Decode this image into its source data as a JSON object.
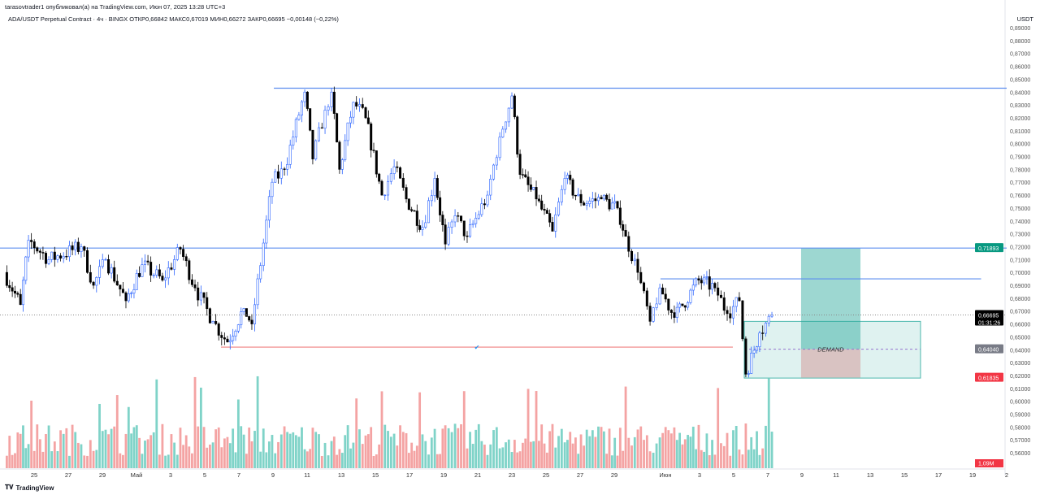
{
  "header": {
    "publisher_line": "tarasovtrader1 опубликовал(а) на TradingView.com, Июн 07, 2025 13:28 UTC+3",
    "symbol_line": "ADA/USDT Perpetual Contract · 4ч · BINGX  ОТКР0,66842  МАКС0,67019  МИН0,66272  ЗАКР0,66695  −0,00148 (−0,22%)",
    "currency": "USDT"
  },
  "footer": {
    "logo_text": "TradingView"
  },
  "colors": {
    "up": "#2962ff",
    "down": "#000000",
    "vol_up": "#7fd3c8",
    "vol_down": "#f4a3a3",
    "line": "#5b8def",
    "support": "#f08080",
    "profit": "#26a69a",
    "stop": "#d6a3a3"
  },
  "chart_data": {
    "type": "candlestick",
    "title": "ADA/USDT Perpetual Contract · 4ч · BINGX",
    "ylim": [
      0.555,
      0.895
    ],
    "y_ticks": [
      "0,89000",
      "0,88000",
      "0,87000",
      "0,86000",
      "0,85000",
      "0,84000",
      "0,83000",
      "0,82000",
      "0,81000",
      "0,80000",
      "0,79000",
      "0,78000",
      "0,77000",
      "0,76000",
      "0,75000",
      "0,74000",
      "0,73000",
      "0,72000",
      "0,71000",
      "0,70000",
      "0,69000",
      "0,68000",
      "0,67000",
      "0,66000",
      "0,65000",
      "0,64000",
      "0,63000",
      "0,62000",
      "0,61000",
      "0,60000",
      "0,59000",
      "0,58000",
      "0,57000",
      "0,56000"
    ],
    "x_ticks": [
      {
        "label": "25",
        "day": 0
      },
      {
        "label": "27",
        "day": 2
      },
      {
        "label": "29",
        "day": 4
      },
      {
        "label": "Май",
        "day": 6
      },
      {
        "label": "3",
        "day": 8
      },
      {
        "label": "5",
        "day": 10
      },
      {
        "label": "7",
        "day": 12
      },
      {
        "label": "9",
        "day": 14
      },
      {
        "label": "11",
        "day": 16
      },
      {
        "label": "13",
        "day": 18
      },
      {
        "label": "15",
        "day": 20
      },
      {
        "label": "17",
        "day": 22
      },
      {
        "label": "19",
        "day": 24
      },
      {
        "label": "21",
        "day": 26
      },
      {
        "label": "23",
        "day": 28
      },
      {
        "label": "25",
        "day": 30
      },
      {
        "label": "27",
        "day": 32
      },
      {
        "label": "29",
        "day": 34
      },
      {
        "label": "Июн",
        "day": 37
      },
      {
        "label": "3",
        "day": 39
      },
      {
        "label": "5",
        "day": 41
      },
      {
        "label": "7",
        "day": 43
      },
      {
        "label": "9",
        "day": 45
      },
      {
        "label": "11",
        "day": 47
      },
      {
        "label": "13",
        "day": 49
      },
      {
        "label": "15",
        "day": 51
      },
      {
        "label": "17",
        "day": 53
      },
      {
        "label": "19",
        "day": 55
      },
      {
        "label": "2",
        "day": 57
      }
    ],
    "close_path_days_from_apr25": [
      [
        -1.76,
        0.7
      ],
      [
        -0.8,
        0.675
      ],
      [
        -0.33,
        0.725
      ],
      [
        0.86,
        0.71
      ],
      [
        2.76,
        0.72
      ],
      [
        3.48,
        0.69
      ],
      [
        4.19,
        0.71
      ],
      [
        5.38,
        0.678
      ],
      [
        6.33,
        0.706
      ],
      [
        7.52,
        0.694
      ],
      [
        8.57,
        0.718
      ],
      [
        9.43,
        0.688
      ],
      [
        10.48,
        0.662
      ],
      [
        11.33,
        0.646
      ],
      [
        12.29,
        0.672
      ],
      [
        12.76,
        0.66
      ],
      [
        13.95,
        0.77
      ],
      [
        14.67,
        0.78
      ],
      [
        15.86,
        0.84
      ],
      [
        16.33,
        0.788
      ],
      [
        17.05,
        0.826
      ],
      [
        17.43,
        0.84
      ],
      [
        17.9,
        0.78
      ],
      [
        18.71,
        0.832
      ],
      [
        19.43,
        0.82
      ],
      [
        20.38,
        0.76
      ],
      [
        21.1,
        0.782
      ],
      [
        21.81,
        0.757
      ],
      [
        22.76,
        0.735
      ],
      [
        23.48,
        0.773
      ],
      [
        24.1,
        0.722
      ],
      [
        24.67,
        0.744
      ],
      [
        25.38,
        0.728
      ],
      [
        26.57,
        0.76
      ],
      [
        27.29,
        0.805
      ],
      [
        28.0,
        0.837
      ],
      [
        28.48,
        0.776
      ],
      [
        29.43,
        0.757
      ],
      [
        30.38,
        0.732
      ],
      [
        31.1,
        0.773
      ],
      [
        32.05,
        0.754
      ],
      [
        33.24,
        0.757
      ],
      [
        34.19,
        0.75
      ],
      [
        34.67,
        0.728
      ],
      [
        35.38,
        0.7
      ],
      [
        36.1,
        0.662
      ],
      [
        36.67,
        0.688
      ],
      [
        37.52,
        0.665
      ],
      [
        38.95,
        0.694
      ],
      [
        39.9,
        0.688
      ],
      [
        40.62,
        0.668
      ],
      [
        41.33,
        0.678
      ],
      [
        41.71,
        0.621
      ],
      [
        42.52,
        0.653
      ],
      [
        43.24,
        0.667
      ]
    ],
    "volume_last": "1,09M",
    "current_price": {
      "value": 0.66695,
      "label": "0,66695",
      "countdown": "01:31:26"
    },
    "levels": [
      {
        "name": "resistance-high",
        "price": 0.843,
        "from_day": 14.05,
        "to_day": 57
      },
      {
        "name": "resistance-mid",
        "price": 0.7189,
        "from_day": -2,
        "to_day": 57
      },
      {
        "name": "range-top",
        "price": 0.695,
        "from_day": 36.71,
        "to_day": 55.5
      },
      {
        "name": "support",
        "price": 0.642,
        "from_day": 10.95,
        "to_day": 40.95
      }
    ],
    "position": {
      "target": 0.71893,
      "target_label": "0,71893",
      "entry": 0.6404,
      "entry_label": "0,64040",
      "stop": 0.61835,
      "stop_label": "0,61835",
      "from_day": 44.95,
      "to_day": 48.43
    },
    "demand_zone": {
      "label": "DEMAND",
      "top": 0.662,
      "bottom": 0.618,
      "mid": 0.6404,
      "from_day": 41.62,
      "to_day": 51.95
    }
  }
}
